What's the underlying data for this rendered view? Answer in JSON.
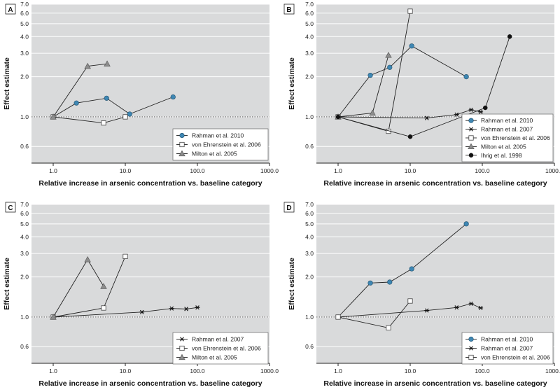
{
  "figure": {
    "ylabel": "Effect estimate",
    "xlabel": "Relative increase in arsenic concentration vs. baseline category",
    "yticks": [
      0.6,
      1.0,
      2.0,
      3.0,
      4.0,
      5.0,
      6.0,
      7.0
    ],
    "ytick_labels": [
      "0.6",
      "1.0",
      "2.0",
      "3.0",
      "4.0",
      "5.0",
      "6.0",
      "7.0"
    ],
    "xticks": [
      1,
      10,
      100,
      1000
    ],
    "xtick_labels": [
      "1.0",
      "10.0",
      "100.0",
      "1000.0"
    ],
    "reference_line": 1.0,
    "colors": {
      "plot_bg": "#d9dadb",
      "grid": "#ffffff",
      "line": "#222222",
      "blue": "#3f87b3",
      "gray": "#8c8c8c",
      "black": "#111111",
      "white": "#ffffff"
    }
  },
  "chart_data": [
    {
      "panel": "A",
      "type": "line",
      "xscale": "log",
      "yscale": "log",
      "xlim": [
        0.5,
        1000
      ],
      "ylim": [
        0.45,
        7.0
      ],
      "xlabel": "Relative increase in arsenic concentration vs. baseline category",
      "ylabel": "Effect estimate",
      "series": [
        {
          "name": "Rahman et al. 2010",
          "marker": "circle",
          "color": "#3f87b3",
          "x": [
            1.0,
            2.1,
            5.5,
            11.5,
            46.0
          ],
          "y": [
            1.0,
            1.27,
            1.38,
            1.05,
            1.41
          ]
        },
        {
          "name": "von Ehrenstein et al. 2006",
          "marker": "square",
          "color": "#ffffff",
          "x": [
            1.0,
            5.0,
            10.0
          ],
          "y": [
            1.0,
            0.9,
            1.0
          ]
        },
        {
          "name": "Milton et al. 2005",
          "marker": "triangle",
          "color": "#8c8c8c",
          "x": [
            1.0,
            3.0,
            5.6
          ],
          "y": [
            1.0,
            2.4,
            2.5
          ]
        }
      ]
    },
    {
      "panel": "B",
      "type": "line",
      "xscale": "log",
      "yscale": "log",
      "xlim": [
        0.5,
        1000
      ],
      "ylim": [
        0.45,
        7.0
      ],
      "xlabel": "Relative increase in arsenic concentration vs. baseline category",
      "ylabel": "Effect estimate",
      "series": [
        {
          "name": "Rahman et al. 2010",
          "marker": "circle",
          "color": "#3f87b3",
          "x": [
            1.0,
            2.8,
            5.2,
            10.5,
            60.0
          ],
          "y": [
            1.0,
            2.05,
            2.35,
            3.4,
            2.0
          ]
        },
        {
          "name": "Rahman et al. 2007",
          "marker": "star",
          "color": "#111111",
          "x": [
            1.0,
            17.0,
            44.0,
            70.0,
            95.0
          ],
          "y": [
            1.0,
            0.98,
            1.04,
            1.13,
            1.09
          ]
        },
        {
          "name": "von Ehrenstein et al. 2006",
          "marker": "square",
          "color": "#ffffff",
          "x": [
            1.0,
            5.0,
            10.0
          ],
          "y": [
            1.0,
            0.78,
            6.2
          ]
        },
        {
          "name": "Milton et al. 2005",
          "marker": "triangle",
          "color": "#8c8c8c",
          "x": [
            1.0,
            3.0,
            5.0
          ],
          "y": [
            1.0,
            1.07,
            2.9
          ]
        },
        {
          "name": "Ihrig et al. 1998",
          "marker": "dot",
          "color": "#111111",
          "x": [
            1.0,
            10.0,
            110.0,
            240.0
          ],
          "y": [
            1.0,
            0.71,
            1.17,
            4.0
          ]
        }
      ]
    },
    {
      "panel": "C",
      "type": "line",
      "xscale": "log",
      "yscale": "log",
      "xlim": [
        0.5,
        1000
      ],
      "ylim": [
        0.45,
        7.0
      ],
      "xlabel": "Relative increase in arsenic concentration vs. baseline category",
      "ylabel": "Effect estimate",
      "series": [
        {
          "name": "Rahman et al. 2007",
          "marker": "star",
          "color": "#111111",
          "x": [
            1.0,
            17.0,
            44.0,
            70.0,
            100.0
          ],
          "y": [
            1.0,
            1.09,
            1.16,
            1.15,
            1.18
          ]
        },
        {
          "name": "von Ehrenstein et al. 2006",
          "marker": "square",
          "color": "#ffffff",
          "x": [
            1.0,
            5.0,
            10.0
          ],
          "y": [
            1.0,
            1.17,
            2.85
          ]
        },
        {
          "name": "Milton et al. 2005",
          "marker": "triangle",
          "color": "#8c8c8c",
          "x": [
            1.0,
            3.0,
            5.0
          ],
          "y": [
            1.0,
            2.7,
            1.7
          ]
        }
      ]
    },
    {
      "panel": "D",
      "type": "line",
      "xscale": "log",
      "yscale": "log",
      "xlim": [
        0.5,
        1000
      ],
      "ylim": [
        0.45,
        7.0
      ],
      "xlabel": "Relative increase in arsenic concentration vs. baseline category",
      "ylabel": "Effect estimate",
      "series": [
        {
          "name": "Rahman et al. 2010",
          "marker": "circle",
          "color": "#3f87b3",
          "x": [
            1.0,
            2.8,
            5.2,
            10.5,
            60.0
          ],
          "y": [
            1.0,
            1.8,
            1.83,
            2.3,
            5.0
          ]
        },
        {
          "name": "Rahman et al. 2007",
          "marker": "star",
          "color": "#111111",
          "x": [
            1.0,
            17.0,
            44.0,
            70.0,
            95.0
          ],
          "y": [
            1.0,
            1.12,
            1.18,
            1.26,
            1.17
          ]
        },
        {
          "name": "von Ehrenstein et al. 2006",
          "marker": "square",
          "color": "#ffffff",
          "x": [
            1.0,
            5.0,
            10.0
          ],
          "y": [
            1.0,
            0.83,
            1.32
          ]
        }
      ]
    }
  ]
}
